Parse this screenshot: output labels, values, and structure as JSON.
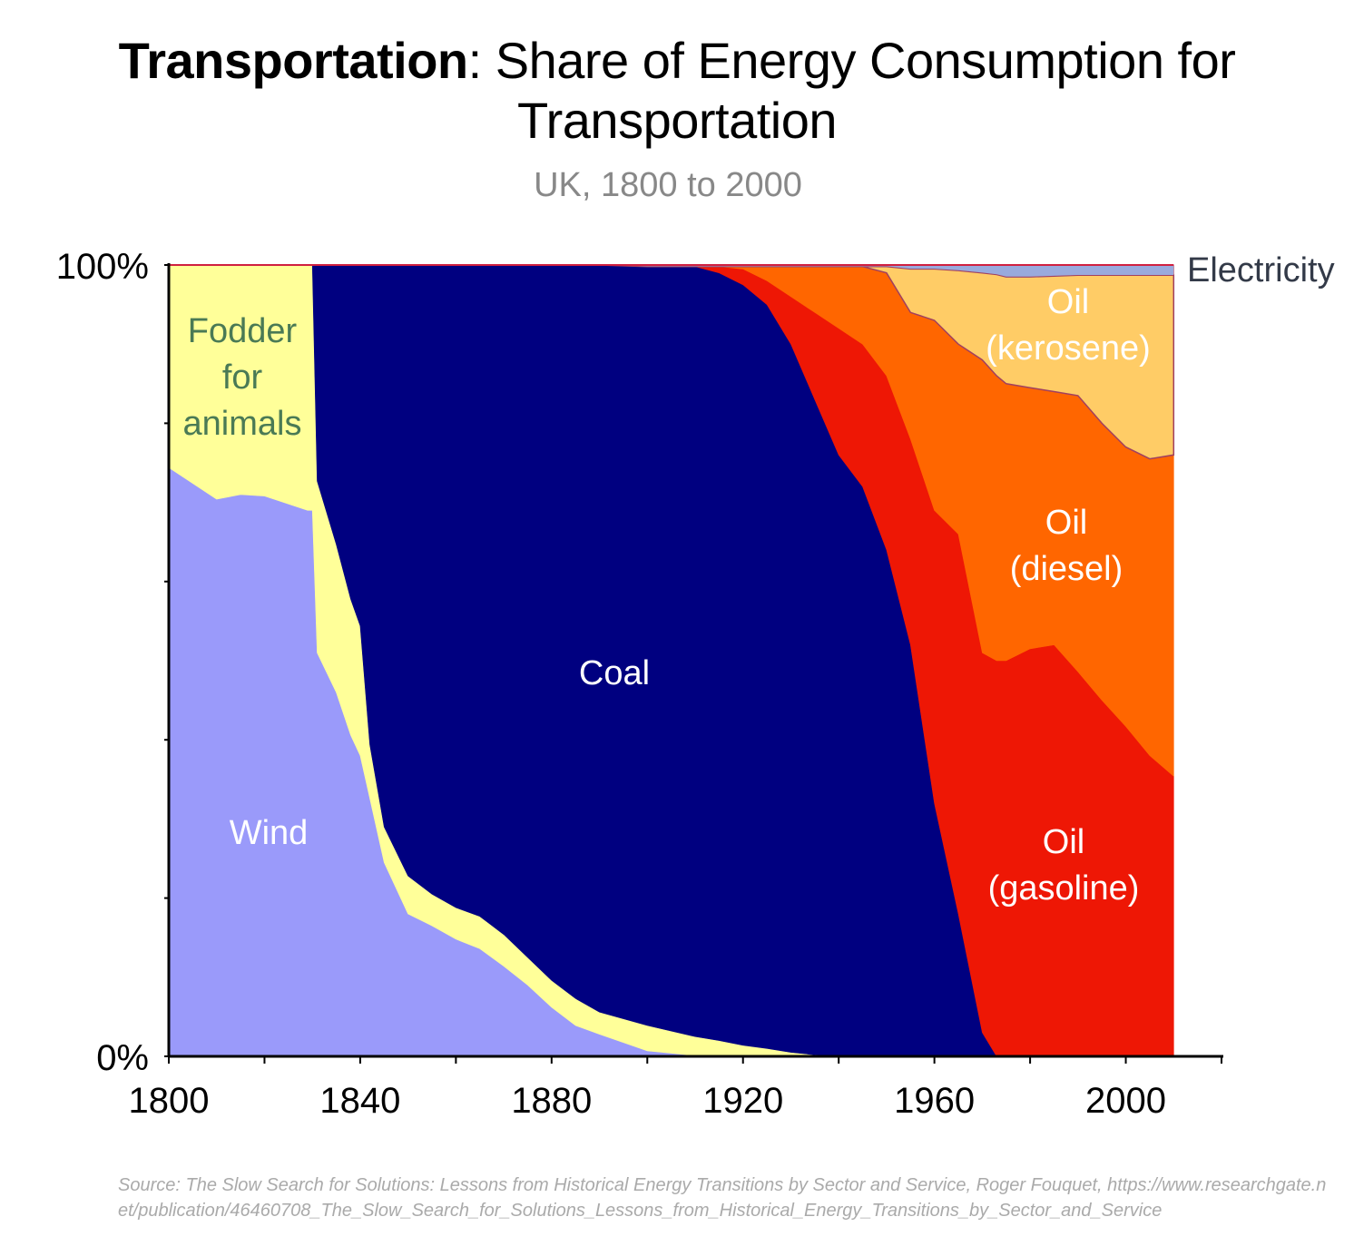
{
  "title": {
    "bold": "Transportation",
    "rest": ": Share of Energy Consumption for Transportation"
  },
  "subtitle": "UK, 1800 to 2000",
  "source": "Source: The Slow Search for Solutions: Lessons from Historical Energy Transitions by Sector and Service, Roger Fouquet, https://www.researchgate.net/publication/46460708_The_Slow_Search_for_Solutions_Lessons_from_Historical_Energy_Transitions_by_Sector_and_Service",
  "chart_data": {
    "type": "area",
    "stacked": true,
    "title": "Transportation: Share of Energy Consumption for Transportation",
    "subtitle": "UK, 1800 to 2000",
    "xlabel": "",
    "ylabel": "",
    "xlim": [
      1800,
      2020
    ],
    "ylim": [
      0,
      100
    ],
    "x_tick_labels": [
      "1800",
      "1840",
      "1880",
      "1920",
      "1960",
      "2000"
    ],
    "y_tick_labels": [
      "0%",
      "100%"
    ],
    "x": [
      1800,
      1810,
      1815,
      1820,
      1829,
      1830,
      1831,
      1835,
      1838,
      1840,
      1842,
      1845,
      1850,
      1855,
      1860,
      1865,
      1870,
      1875,
      1880,
      1885,
      1890,
      1900,
      1910,
      1915,
      1920,
      1925,
      1930,
      1935,
      1940,
      1945,
      1950,
      1955,
      1960,
      1965,
      1970,
      1973,
      1975,
      1980,
      1985,
      1990,
      1995,
      2000,
      2005,
      2010
    ],
    "series": [
      {
        "name": "Wind",
        "label": [
          "Wind"
        ],
        "color": "#9a9afa",
        "label_color": "#ffffff",
        "values": [
          74.4,
          70.4,
          71,
          70.8,
          69,
          69,
          51,
          46,
          40.6,
          38,
          32.6,
          24.5,
          18,
          16.5,
          14.8,
          13.6,
          11.4,
          9,
          6.2,
          3.9,
          2.8,
          0.7,
          0.1,
          0,
          0,
          0,
          0,
          0,
          0,
          0,
          0,
          0,
          0,
          0,
          0,
          0,
          0,
          0,
          0,
          0,
          0,
          0,
          0,
          0
        ]
      },
      {
        "name": "Fodder for animals",
        "label": [
          "Fodder",
          "for",
          "animals"
        ],
        "color": "#ffff99",
        "label_color": "#4a7a55",
        "values": [
          25.6,
          29.6,
          29,
          29.2,
          31,
          31,
          21.7,
          18.7,
          17.2,
          16.4,
          6.8,
          4.5,
          4.8,
          4,
          4,
          4.1,
          4,
          3.5,
          3.4,
          3.4,
          2.8,
          3.2,
          2.4,
          2,
          1.4,
          1,
          0.5,
          0.2,
          0,
          0,
          0,
          0,
          0,
          0,
          0,
          0,
          0,
          0,
          0,
          0,
          0,
          0,
          0,
          0
        ]
      },
      {
        "name": "Coal",
        "label": [
          "Coal"
        ],
        "color": "#000080",
        "label_color": "#ffffff",
        "values": [
          0,
          0,
          0,
          0,
          0,
          0,
          27.3,
          35.3,
          42.2,
          45.6,
          60.6,
          71,
          77.2,
          79.5,
          81.2,
          82.3,
          84.6,
          87.5,
          90.4,
          92.7,
          94.4,
          95.9,
          97.3,
          97,
          96.1,
          94,
          89.5,
          82.8,
          76,
          72,
          64,
          52,
          32,
          18,
          3,
          0,
          0,
          0,
          0,
          0,
          0,
          0,
          0,
          0
        ]
      },
      {
        "name": "Oil (gasoline)",
        "label": [
          "Oil",
          "(gasoline)"
        ],
        "color": "#ee1705",
        "label_color": "#ffffff",
        "values": [
          0,
          0,
          0,
          0,
          0,
          0,
          0,
          0,
          0,
          0,
          0,
          0,
          0,
          0,
          0,
          0,
          0,
          0,
          0,
          0,
          0,
          0,
          0,
          0.8,
          2,
          3,
          6,
          11,
          16,
          18,
          22,
          26,
          37,
          48,
          48,
          50,
          50,
          51.5,
          52,
          48.6,
          45,
          41.7,
          38,
          35.4
        ]
      },
      {
        "name": "Oil (diesel)",
        "label": [
          "Oil",
          "(diesel)"
        ],
        "color": "#ff6600",
        "label_color": "#ffffff",
        "values": [
          0,
          0,
          0,
          0,
          0,
          0,
          0,
          0,
          0,
          0,
          0,
          0,
          0,
          0,
          0,
          0,
          0,
          0,
          0,
          0,
          0,
          0,
          0,
          0,
          0.3,
          1.8,
          3.8,
          5.8,
          7.8,
          9.8,
          13,
          16,
          24,
          24,
          37,
          36,
          35,
          33,
          32,
          34.9,
          35,
          35.3,
          37.5,
          40.6
        ]
      },
      {
        "name": "Oil (kerosene)",
        "label": [
          "Oil",
          "(kerosene)"
        ],
        "color": "#ffcc66",
        "label_color": "#ffffff",
        "values": [
          0,
          0,
          0,
          0,
          0,
          0,
          0,
          0,
          0,
          0,
          0,
          0,
          0,
          0,
          0,
          0,
          0,
          0,
          0,
          0,
          0,
          0,
          0,
          0,
          0,
          0,
          0,
          0,
          0,
          0,
          0.8,
          5.5,
          6.5,
          9.3,
          11,
          12.8,
          13.5,
          14,
          14.6,
          15.2,
          18.7,
          21.7,
          23.2,
          22.7
        ]
      },
      {
        "name": "Electricity",
        "label": [
          "Electricity"
        ],
        "color": "#99aadd",
        "label_color": "#333a48",
        "values": [
          0,
          0,
          0,
          0,
          0,
          0,
          0,
          0,
          0,
          0,
          0,
          0,
          0,
          0,
          0,
          0,
          0,
          0,
          0,
          0,
          0,
          0.2,
          0.2,
          0.2,
          0.2,
          0.2,
          0.2,
          0.2,
          0.2,
          0.2,
          0.2,
          0.5,
          0.5,
          0.7,
          1,
          1.2,
          1.5,
          1.5,
          1.4,
          1.3,
          1.3,
          1.3,
          1.3,
          1.3
        ]
      }
    ]
  }
}
